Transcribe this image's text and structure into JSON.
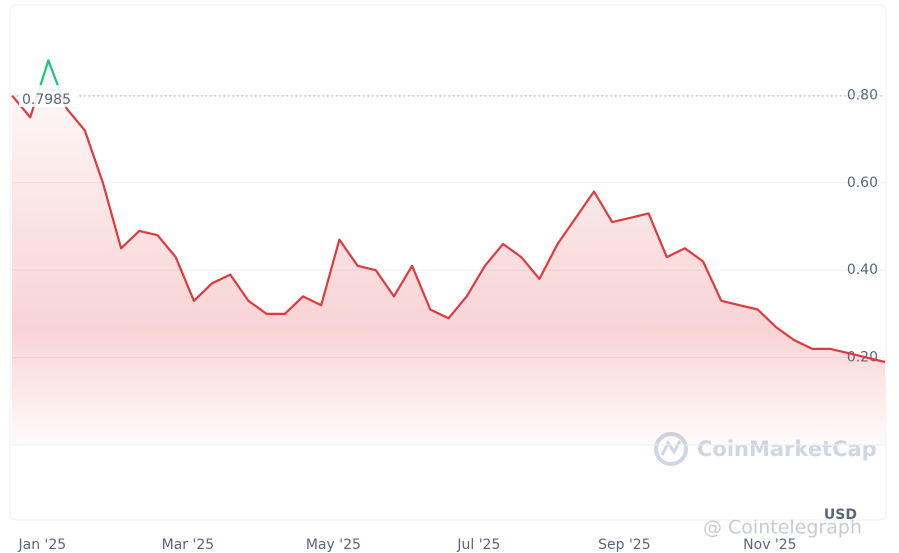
{
  "chart_data": {
    "type": "line",
    "categories": [
      null,
      null,
      "Jan '25",
      null,
      null,
      null,
      null,
      null,
      null,
      null,
      "Mar '25",
      null,
      null,
      null,
      null,
      null,
      null,
      null,
      "May '25",
      null,
      null,
      null,
      null,
      null,
      null,
      null,
      "Jul '25",
      null,
      null,
      null,
      null,
      null,
      null,
      null,
      "Sep '25",
      null,
      null,
      null,
      null,
      null,
      null,
      null,
      "Nov '25",
      null,
      null,
      null,
      null,
      null,
      null
    ],
    "series": [
      {
        "color": "#e03a3e",
        "color_above": "#16c784",
        "values": [
          0.8,
          0.75,
          0.88,
          0.77,
          0.72,
          0.6,
          0.45,
          0.49,
          0.48,
          0.43,
          0.33,
          0.37,
          0.39,
          0.33,
          0.3,
          0.3,
          0.34,
          0.32,
          0.47,
          0.41,
          0.4,
          0.34,
          0.41,
          0.31,
          0.29,
          0.34,
          0.41,
          0.46,
          0.43,
          0.38,
          0.46,
          0.52,
          0.58,
          0.51,
          0.52,
          0.53,
          0.43,
          0.45,
          0.42,
          0.33,
          0.32,
          0.31,
          0.27,
          0.24,
          0.22,
          0.22,
          0.21,
          0.2,
          0.19
        ]
      }
    ],
    "start_price": 0.7985,
    "ylim": [
      0,
      1.0
    ],
    "yticks": [
      {
        "value": 0.2,
        "label": "0.20"
      },
      {
        "value": 0.4,
        "label": "0.40"
      },
      {
        "value": 0.6,
        "label": "0.60"
      },
      {
        "value": 0.8,
        "label": "0.80"
      }
    ],
    "currency_label": "USD",
    "watermarks": [
      "CoinMarketCap",
      "@ Cointelegraph"
    ],
    "grid": true
  }
}
